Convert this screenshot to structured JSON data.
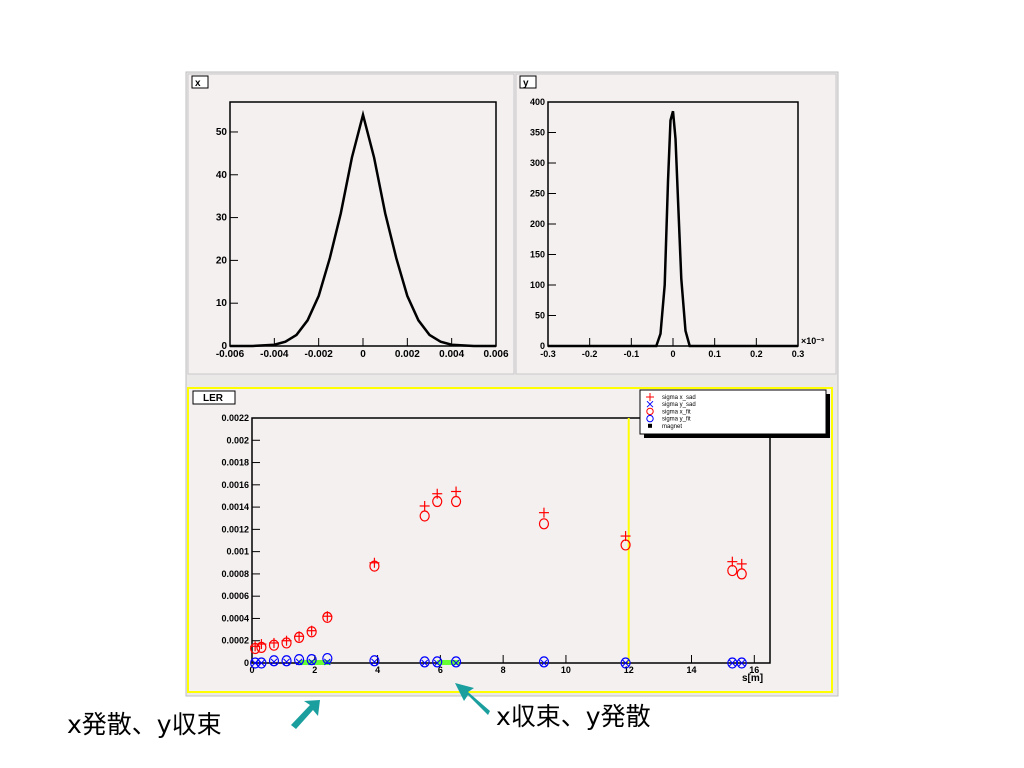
{
  "chart_data": [
    {
      "type": "line",
      "title": "x",
      "xlim": [
        -0.006,
        0.006
      ],
      "ylim": [
        0,
        57
      ],
      "x_ticks": [
        "-0.006",
        "-0.004",
        "-0.002",
        "0",
        "0.002",
        "0.004",
        "0.006"
      ],
      "y_ticks": [
        "0",
        "10",
        "20",
        "30",
        "40",
        "50"
      ],
      "series": [
        {
          "x": [
            -0.006,
            -0.005,
            -0.004,
            -0.0035,
            -0.003,
            -0.0025,
            -0.002,
            -0.0015,
            -0.001,
            -0.0005,
            0,
            0.0005,
            0.001,
            0.0015,
            0.002,
            0.0025,
            0.003,
            0.0035,
            0.004,
            0.005,
            0.006
          ],
          "y": [
            0,
            0,
            0.3,
            1,
            2.6,
            6,
            11.7,
            20.5,
            31,
            44,
            54,
            44,
            31,
            20.5,
            11.7,
            6,
            2.6,
            1,
            0.3,
            0,
            0
          ]
        }
      ]
    },
    {
      "type": "line",
      "title": "y",
      "xlim": [
        -0.3,
        0.3
      ],
      "ylim": [
        0,
        400
      ],
      "x_ticks": [
        "-0.3",
        "-0.2",
        "-0.1",
        "0",
        "0.1",
        "0.2",
        "0.3"
      ],
      "x_exponent": "×10⁻³",
      "y_ticks": [
        "0",
        "50",
        "100",
        "150",
        "200",
        "250",
        "300",
        "350",
        "400"
      ],
      "series": [
        {
          "x": [
            -0.3,
            -0.04,
            -0.03,
            -0.02,
            -0.012,
            -0.006,
            0,
            0.006,
            0.012,
            0.02,
            0.03,
            0.04,
            0.3
          ],
          "y": [
            0,
            0,
            20,
            100,
            270,
            370,
            385,
            340,
            240,
            110,
            25,
            0,
            0
          ]
        }
      ]
    },
    {
      "type": "scatter",
      "title": "LER",
      "xlabel": "s[m]",
      "xlim": [
        0,
        16.5
      ],
      "ylim": [
        0,
        0.0022
      ],
      "x_ticks": [
        "0",
        "2",
        "4",
        "6",
        "8",
        "10",
        "12",
        "14",
        "16"
      ],
      "y_ticks": [
        "0",
        "0.0002",
        "0.0004",
        "0.0006",
        "0.0008",
        "0.001",
        "0.0012",
        "0.0014",
        "0.0016",
        "0.0018",
        "0.002",
        "0.0022"
      ],
      "legend": {
        "position": "top-right",
        "entries": [
          "sigma x_sad",
          "sigma y_sad",
          "sigma x_fit",
          "sigma y_fit",
          "magnet"
        ]
      },
      "series": [
        {
          "name": "sigma x_sad",
          "marker": "plus",
          "color": "#ff0000",
          "x": [
            0.1,
            0.3,
            0.7,
            1.1,
            1.5,
            1.9,
            2.4,
            3.9,
            5.5,
            5.9,
            6.5,
            9.3,
            11.9,
            15.3,
            15.6
          ],
          "y": [
            0.00015,
            0.00017,
            0.00018,
            0.0002,
            0.00024,
            0.00029,
            0.00042,
            0.0009,
            0.00141,
            0.00152,
            0.00154,
            0.00135,
            0.00114,
            0.00091,
            0.00089
          ]
        },
        {
          "name": "sigma y_sad",
          "marker": "cross",
          "color": "#0000ff",
          "x": [
            0.1,
            0.3,
            0.7,
            1.1,
            1.5,
            1.9,
            2.4,
            3.9,
            5.5,
            5.9,
            6.5,
            9.3,
            11.9,
            15.3,
            15.6
          ],
          "y": [
            0,
            0,
            1e-05,
            1e-05,
            1e-05,
            1e-05,
            1e-05,
            1e-05,
            0,
            0,
            0,
            0,
            0,
            0,
            0
          ]
        },
        {
          "name": "sigma x_fit",
          "marker": "circle",
          "color": "#ff0000",
          "x": [
            0.1,
            0.3,
            0.7,
            1.1,
            1.5,
            1.9,
            2.4,
            3.9,
            5.5,
            5.9,
            6.5,
            9.3,
            11.9,
            15.3,
            15.6
          ],
          "y": [
            0.00013,
            0.00014,
            0.00016,
            0.00018,
            0.00023,
            0.00028,
            0.00041,
            0.00087,
            0.00132,
            0.00145,
            0.00145,
            0.00125,
            0.00106,
            0.00083,
            0.0008
          ]
        },
        {
          "name": "sigma y_fit",
          "marker": "circle",
          "color": "#0000ff",
          "x": [
            0.1,
            0.3,
            0.7,
            1.1,
            1.5,
            1.9,
            2.4,
            3.9,
            5.5,
            5.9,
            6.5,
            9.3,
            11.9,
            15.3,
            15.6
          ],
          "y": [
            0,
            0,
            2e-05,
            2e-05,
            3e-05,
            3e-05,
            4e-05,
            2e-05,
            1e-05,
            1e-05,
            1e-05,
            1e-05,
            0,
            0,
            0
          ]
        }
      ],
      "magnets": [
        {
          "x_from": 1.5,
          "x_to": 2.5
        },
        {
          "x_from": 5.9,
          "x_to": 6.6
        }
      ],
      "marker_line_x": 12
    }
  ],
  "annotations": [
    {
      "text": "x発散、y収束",
      "color": "#1a9e9e"
    },
    {
      "text": "x収束、y発散",
      "color": "#1a9e9e"
    }
  ],
  "colors": {
    "frame_bg": "#f4f0f0",
    "highlight": "#ffff00",
    "magnet": "#66ff33"
  }
}
